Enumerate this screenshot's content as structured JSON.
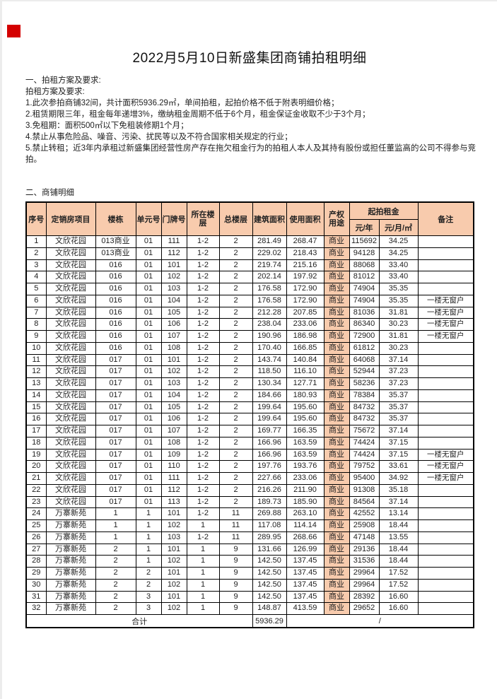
{
  "colors": {
    "accent_red": "#d40000",
    "header_bg": "#f8cbad",
    "border": "#000000"
  },
  "title": "2022月5月10日新盛集团商铺拍租明细",
  "section1": {
    "heading": "一、拍租方案及要求:",
    "lines": [
      "拍租方案及要求:",
      "1.此次参拍商铺32间，共计面积5936.29㎡，单间拍租，起拍价格不低于附表明细价格；",
      "2.租赁期限三年，租金每年递增3%，缴纳租金周期不低于6个月，租金保证金收取不少于3个月；",
      "3.免租期：面积500㎡以下免租装修期1个月；",
      "4.禁止从事危险品、噪音、污染、扰民等以及不符合国家相关规定的行业；",
      "5.禁止转租；近3年内承租过新盛集团经营性房产存在拖欠租金行为的拍租人本人及其持有股份或担任董监高的公司不得参与竞拍。"
    ]
  },
  "section2": {
    "heading": "二、商铺明细"
  },
  "table": {
    "header": {
      "seq": "序号",
      "project": "定销房项目",
      "building": "楼栋",
      "unit": "单元号",
      "door": "门牌号",
      "floor_l1": "所在楼",
      "floor_l2": "层",
      "total_floor": "总楼层",
      "build_area": "建筑面积",
      "use_area": "使用面积",
      "use_l1": "产权",
      "use_l2": "用途",
      "rent_group": "起拍租金",
      "rent_year": "元/年",
      "rent_month": "元/月/㎡",
      "remark": "备注"
    },
    "rows": [
      [
        "1",
        "文欣花园",
        "013商业",
        "01",
        "111",
        "1-2",
        "2",
        "281.49",
        "268.47",
        "商业",
        "115692",
        "34.25",
        ""
      ],
      [
        "2",
        "文欣花园",
        "013商业",
        "01",
        "112",
        "1-2",
        "2",
        "229.02",
        "218.43",
        "商业",
        "94128",
        "34.25",
        ""
      ],
      [
        "3",
        "文欣花园",
        "016",
        "01",
        "101",
        "1-2",
        "2",
        "219.74",
        "215.16",
        "商业",
        "88068",
        "33.40",
        ""
      ],
      [
        "4",
        "文欣花园",
        "016",
        "01",
        "102",
        "1-2",
        "2",
        "202.14",
        "197.92",
        "商业",
        "81012",
        "33.40",
        ""
      ],
      [
        "5",
        "文欣花园",
        "016",
        "01",
        "103",
        "1-2",
        "2",
        "176.58",
        "172.90",
        "商业",
        "74904",
        "35.35",
        ""
      ],
      [
        "6",
        "文欣花园",
        "016",
        "01",
        "104",
        "1-2",
        "2",
        "176.58",
        "172.90",
        "商业",
        "74904",
        "35.35",
        "一楼无窗户"
      ],
      [
        "7",
        "文欣花园",
        "016",
        "01",
        "105",
        "1-2",
        "2",
        "212.28",
        "207.85",
        "商业",
        "81036",
        "31.81",
        "一楼无窗户"
      ],
      [
        "8",
        "文欣花园",
        "016",
        "01",
        "106",
        "1-2",
        "2",
        "238.04",
        "233.06",
        "商业",
        "86340",
        "30.23",
        "一楼无窗户"
      ],
      [
        "9",
        "文欣花园",
        "016",
        "01",
        "107",
        "1-2",
        "2",
        "190.96",
        "186.98",
        "商业",
        "72900",
        "31.81",
        "一楼无窗户"
      ],
      [
        "10",
        "文欣花园",
        "016",
        "01",
        "108",
        "1-2",
        "2",
        "170.40",
        "166.85",
        "商业",
        "61812",
        "30.23",
        ""
      ],
      [
        "11",
        "文欣花园",
        "017",
        "01",
        "101",
        "1-2",
        "2",
        "143.74",
        "140.84",
        "商业",
        "64068",
        "37.14",
        ""
      ],
      [
        "12",
        "文欣花园",
        "017",
        "01",
        "102",
        "1-2",
        "2",
        "118.50",
        "116.10",
        "商业",
        "52944",
        "37.23",
        ""
      ],
      [
        "13",
        "文欣花园",
        "017",
        "01",
        "103",
        "1-2",
        "2",
        "130.34",
        "127.71",
        "商业",
        "58236",
        "37.23",
        ""
      ],
      [
        "14",
        "文欣花园",
        "017",
        "01",
        "104",
        "1-2",
        "2",
        "184.66",
        "180.93",
        "商业",
        "78384",
        "35.37",
        ""
      ],
      [
        "15",
        "文欣花园",
        "017",
        "01",
        "105",
        "1-2",
        "2",
        "199.64",
        "195.60",
        "商业",
        "84732",
        "35.37",
        ""
      ],
      [
        "16",
        "文欣花园",
        "017",
        "01",
        "106",
        "1-2",
        "2",
        "199.64",
        "195.60",
        "商业",
        "84732",
        "35.37",
        ""
      ],
      [
        "17",
        "文欣花园",
        "017",
        "01",
        "107",
        "1-2",
        "2",
        "169.77",
        "166.35",
        "商业",
        "75672",
        "37.14",
        ""
      ],
      [
        "18",
        "文欣花园",
        "017",
        "01",
        "108",
        "1-2",
        "2",
        "166.96",
        "163.59",
        "商业",
        "74424",
        "37.15",
        ""
      ],
      [
        "19",
        "文欣花园",
        "017",
        "01",
        "109",
        "1-2",
        "2",
        "166.96",
        "163.59",
        "商业",
        "74424",
        "37.15",
        "一楼无窗户"
      ],
      [
        "20",
        "文欣花园",
        "017",
        "01",
        "110",
        "1-2",
        "2",
        "197.76",
        "193.76",
        "商业",
        "79752",
        "33.61",
        "一楼无窗户"
      ],
      [
        "21",
        "文欣花园",
        "017",
        "01",
        "111",
        "1-2",
        "2",
        "227.66",
        "233.06",
        "商业",
        "95400",
        "34.92",
        "一楼无窗户"
      ],
      [
        "22",
        "文欣花园",
        "017",
        "01",
        "112",
        "1-2",
        "2",
        "216.26",
        "211.90",
        "商业",
        "91308",
        "35.18",
        ""
      ],
      [
        "23",
        "文欣花园",
        "017",
        "01",
        "113",
        "1-2",
        "2",
        "189.73",
        "185.90",
        "商业",
        "84564",
        "37.14",
        ""
      ],
      [
        "24",
        "万寨新苑",
        "1",
        "1",
        "101",
        "1-2",
        "11",
        "269.88",
        "263.10",
        "商业",
        "42552",
        "13.14",
        ""
      ],
      [
        "25",
        "万寨新苑",
        "1",
        "1",
        "102",
        "1",
        "11",
        "117.08",
        "114.14",
        "商业",
        "25908",
        "18.44",
        ""
      ],
      [
        "26",
        "万寨新苑",
        "1",
        "1",
        "103",
        "1-2",
        "11",
        "289.95",
        "268.66",
        "商业",
        "47148",
        "13.55",
        ""
      ],
      [
        "27",
        "万寨新苑",
        "2",
        "1",
        "101",
        "1",
        "9",
        "131.66",
        "126.99",
        "商业",
        "29136",
        "18.44",
        ""
      ],
      [
        "28",
        "万寨新苑",
        "2",
        "1",
        "102",
        "1",
        "9",
        "142.50",
        "137.45",
        "商业",
        "31536",
        "18.44",
        ""
      ],
      [
        "29",
        "万寨新苑",
        "2",
        "2",
        "101",
        "1",
        "9",
        "142.50",
        "137.45",
        "商业",
        "29964",
        "17.52",
        ""
      ],
      [
        "30",
        "万寨新苑",
        "2",
        "2",
        "102",
        "1",
        "9",
        "142.50",
        "137.45",
        "商业",
        "29964",
        "17.52",
        ""
      ],
      [
        "31",
        "万寨新苑",
        "2",
        "3",
        "101",
        "1",
        "9",
        "142.50",
        "137.45",
        "商业",
        "28392",
        "16.60",
        ""
      ],
      [
        "32",
        "万寨新苑",
        "2",
        "3",
        "102",
        "1",
        "9",
        "148.87",
        "413.59",
        "商业",
        "29652",
        "16.60",
        ""
      ]
    ],
    "total_row": {
      "label": "合计",
      "build_area_total": "5936.29",
      "slash": "/"
    }
  }
}
